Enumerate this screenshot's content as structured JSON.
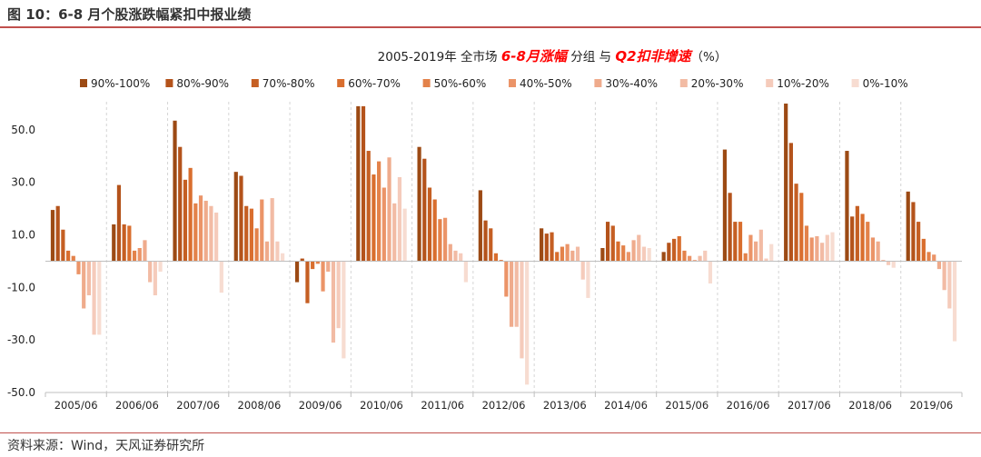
{
  "header": {
    "title": "图 10：6-8 月个股涨跌幅紧扣中报业绩"
  },
  "footer": {
    "source": "资料来源：Wind，天风证券研究所"
  },
  "chart_data": {
    "type": "bar",
    "title_parts": [
      {
        "text": "2005-2019年 全市场 ",
        "style": "normal"
      },
      {
        "text": "6-8月涨幅",
        "style": "accent"
      },
      {
        "text": " 分组 与 ",
        "style": "normal"
      },
      {
        "text": "Q2扣非增速",
        "style": "accent"
      },
      {
        "text": "（%）",
        "style": "normal"
      }
    ],
    "categories": [
      "2005/06",
      "2006/06",
      "2007/06",
      "2008/06",
      "2009/06",
      "2010/06",
      "2011/06",
      "2012/06",
      "2013/06",
      "2014/06",
      "2015/06",
      "2016/06",
      "2017/06",
      "2018/06",
      "2019/06"
    ],
    "series_names": [
      "90%-100%",
      "80%-90%",
      "70%-80%",
      "60%-70%",
      "50%-60%",
      "40%-50%",
      "30%-40%",
      "20%-30%",
      "10%-20%",
      "0%-10%"
    ],
    "colors": [
      "#9c4a14",
      "#b4531b",
      "#c55f23",
      "#d96e2e",
      "#e3824a",
      "#eb9468",
      "#efab8c",
      "#f2bba4",
      "#f5cbbb",
      "#f7dcd1"
    ],
    "values": [
      [
        19.5,
        21,
        12,
        4,
        2,
        -5,
        -18,
        -13,
        -28,
        -28
      ],
      [
        14,
        29,
        14,
        13.5,
        4,
        5,
        8,
        -8,
        -13,
        -4
      ],
      [
        53.5,
        43.5,
        31,
        35.5,
        22,
        25,
        23,
        21,
        18.5,
        -12
      ],
      [
        34,
        32.5,
        21,
        20,
        12.5,
        23.5,
        7.5,
        24,
        7.5,
        3
      ],
      [
        -8,
        1,
        -16,
        -3,
        -1,
        -11.5,
        -4,
        -31,
        -25.5,
        -37
      ],
      [
        59,
        59,
        42,
        33,
        38,
        28,
        39.5,
        22,
        32,
        20
      ],
      [
        43.5,
        39,
        28,
        23.5,
        16,
        16.5,
        6.5,
        4,
        3,
        -8
      ],
      [
        27,
        15.5,
        12.5,
        3,
        0.5,
        -13.5,
        -25,
        -25,
        -37,
        -47
      ],
      [
        12.5,
        10.5,
        11,
        3.5,
        5.5,
        6.5,
        4,
        5.5,
        -7,
        -14
      ],
      [
        5,
        15,
        13.5,
        7.5,
        6,
        3.5,
        8,
        10,
        5.5,
        5
      ],
      [
        3.5,
        7,
        8.5,
        9.5,
        4,
        2,
        0.5,
        2,
        4,
        -8.5
      ],
      [
        42.5,
        26,
        15,
        15,
        3,
        10,
        7.5,
        12,
        1,
        6.5
      ],
      [
        60,
        45,
        29.5,
        26,
        13.5,
        9,
        9.5,
        7,
        10,
        11
      ],
      [
        42,
        17,
        21,
        18,
        15,
        9,
        7.5,
        0.5,
        -1.5,
        -2.5
      ],
      [
        26.5,
        22.5,
        15,
        8.5,
        3.5,
        2.5,
        -3,
        -11,
        -18,
        -30.5
      ]
    ],
    "y_ticks": [
      "50.0",
      "30.0",
      "10.0",
      "-10.0",
      "-30.0",
      "-50.0"
    ],
    "ylim": [
      -50,
      60
    ],
    "legend_position": "top",
    "grid": false
  }
}
